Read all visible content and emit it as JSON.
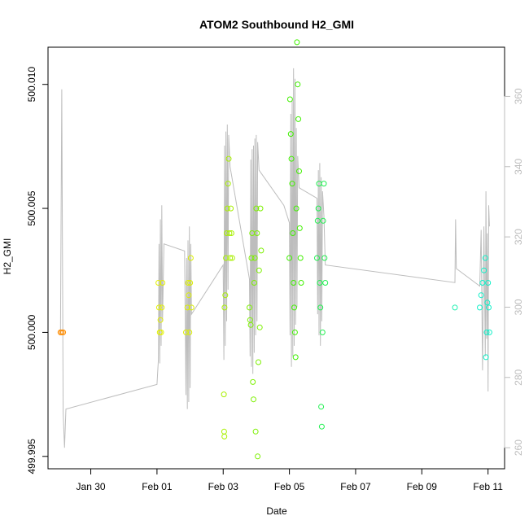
{
  "chart_data": {
    "type": "scatter",
    "title": "ATOM2 Southbound H2_GMI",
    "xlabel": "Date",
    "ylabel": "H2_GMI",
    "x_ticks": [
      "Jan 30",
      "Feb 01",
      "Feb 03",
      "Feb 05",
      "Feb 07",
      "Feb 09",
      "Feb 11"
    ],
    "x_tick_dates": [
      "2017-01-30",
      "2017-02-01",
      "2017-02-03",
      "2017-02-05",
      "2017-02-07",
      "2017-02-09",
      "2017-02-11"
    ],
    "y_ticks": [
      "499.995",
      "500.000",
      "500.005",
      "500.010"
    ],
    "y2_ticks": [
      "260",
      "280",
      "300",
      "320",
      "340",
      "360"
    ],
    "xlim": [
      "2017-01-28 17:00",
      "2017-02-11 12:00"
    ],
    "ylim": [
      499.9945,
      500.0115
    ],
    "y2lim": [
      254,
      374
    ],
    "grid": false,
    "colors": {
      "background_line": "#bdbdbd",
      "axis": "#000000",
      "right_axis": "#bdbdbd",
      "points_jan29": "#ff8c00",
      "points_feb01": "#e2f000",
      "points_feb02": "#dcf000",
      "points_feb03": "#a8f000",
      "points_feb04": "#7cf000",
      "points_feb05": "#40f000",
      "points_feb06": "#20f050",
      "points_feb10": "#1ff0b0",
      "points_feb11": "#10f0c8"
    },
    "series": [
      {
        "kind": "points",
        "color_key": "points_jan29",
        "points": [
          [
            "2017-01-29 02:00",
            500.0
          ],
          [
            "2017-01-29 03:00",
            500.0
          ],
          [
            "2017-01-29 04:00",
            500.0
          ]
        ]
      },
      {
        "kind": "points",
        "color_key": "points_feb01",
        "points": [
          [
            "2017-02-01 01:00",
            500.002
          ],
          [
            "2017-02-01 01:30",
            500.001
          ],
          [
            "2017-02-01 02:00",
            500.0
          ],
          [
            "2017-02-01 02:30",
            500.0005
          ],
          [
            "2017-02-01 03:00",
            500.0
          ],
          [
            "2017-02-01 03:30",
            500.001
          ],
          [
            "2017-02-01 04:00",
            500.002
          ]
        ]
      },
      {
        "kind": "points",
        "color_key": "points_feb02",
        "points": [
          [
            "2017-02-01 21:00",
            500.0
          ],
          [
            "2017-02-01 22:00",
            500.001
          ],
          [
            "2017-02-01 22:30",
            500.002
          ],
          [
            "2017-02-01 23:00",
            500.0015
          ],
          [
            "2017-02-01 23:30",
            500.0
          ],
          [
            "2017-02-02 00:00",
            500.002
          ],
          [
            "2017-02-02 00:30",
            500.003
          ],
          [
            "2017-02-02 01:00",
            500.001
          ]
        ]
      },
      {
        "kind": "points",
        "color_key": "points_feb03",
        "points": [
          [
            "2017-02-03 00:30",
            499.9975
          ],
          [
            "2017-02-03 00:40",
            499.996
          ],
          [
            "2017-02-03 00:50",
            499.9958
          ],
          [
            "2017-02-03 01:00",
            500.001
          ],
          [
            "2017-02-03 01:30",
            500.0015
          ],
          [
            "2017-02-03 02:00",
            500.003
          ],
          [
            "2017-02-03 02:30",
            500.004
          ],
          [
            "2017-02-03 03:00",
            500.005
          ],
          [
            "2017-02-03 03:30",
            500.006
          ],
          [
            "2017-02-03 04:00",
            500.007
          ],
          [
            "2017-02-03 04:30",
            500.004
          ],
          [
            "2017-02-03 05:00",
            500.003
          ],
          [
            "2017-02-03 05:30",
            500.005
          ],
          [
            "2017-02-03 06:00",
            500.004
          ],
          [
            "2017-02-03 06:30",
            500.003
          ]
        ]
      },
      {
        "kind": "points",
        "color_key": "points_feb04",
        "points": [
          [
            "2017-02-03 19:00",
            500.001
          ],
          [
            "2017-02-03 19:30",
            500.0005
          ],
          [
            "2017-02-03 20:00",
            500.0003
          ],
          [
            "2017-02-03 20:30",
            500.003
          ],
          [
            "2017-02-03 21:00",
            500.004
          ],
          [
            "2017-02-03 21:30",
            499.998
          ],
          [
            "2017-02-03 22:00",
            499.9973
          ],
          [
            "2017-02-03 22:30",
            500.002
          ],
          [
            "2017-02-03 23:00",
            500.003
          ],
          [
            "2017-02-03 23:30",
            499.996
          ],
          [
            "2017-02-04 00:00",
            500.005
          ],
          [
            "2017-02-04 00:30",
            500.004
          ],
          [
            "2017-02-04 01:00",
            499.995
          ],
          [
            "2017-02-04 01:30",
            499.9988
          ],
          [
            "2017-02-04 02:00",
            500.0025
          ],
          [
            "2017-02-04 02:30",
            500.0002
          ],
          [
            "2017-02-04 03:00",
            500.005
          ],
          [
            "2017-02-04 03:30",
            500.0033
          ]
        ]
      },
      {
        "kind": "points",
        "color_key": "points_feb05",
        "points": [
          [
            "2017-02-05 00:00",
            500.003
          ],
          [
            "2017-02-05 00:30",
            500.0094
          ],
          [
            "2017-02-05 01:00",
            500.008
          ],
          [
            "2017-02-05 01:30",
            500.007
          ],
          [
            "2017-02-05 02:00",
            500.006
          ],
          [
            "2017-02-05 02:30",
            500.004
          ],
          [
            "2017-02-05 03:00",
            500.002
          ],
          [
            "2017-02-05 03:30",
            500.001
          ],
          [
            "2017-02-05 04:00",
            500.0
          ],
          [
            "2017-02-05 04:30",
            499.999
          ],
          [
            "2017-02-05 05:00",
            500.005
          ],
          [
            "2017-02-05 05:30",
            500.0117
          ],
          [
            "2017-02-05 06:00",
            500.01
          ],
          [
            "2017-02-05 06:30",
            500.0086
          ],
          [
            "2017-02-05 07:00",
            500.0065
          ],
          [
            "2017-02-05 07:30",
            500.0042
          ],
          [
            "2017-02-05 08:00",
            500.003
          ],
          [
            "2017-02-05 08:30",
            500.002
          ]
        ]
      },
      {
        "kind": "points",
        "color_key": "points_feb06",
        "points": [
          [
            "2017-02-05 20:00",
            500.003
          ],
          [
            "2017-02-05 20:30",
            500.0045
          ],
          [
            "2017-02-05 21:00",
            500.005
          ],
          [
            "2017-02-05 21:30",
            500.006
          ],
          [
            "2017-02-05 22:00",
            500.002
          ],
          [
            "2017-02-05 22:30",
            500.001
          ],
          [
            "2017-02-05 23:00",
            499.997
          ],
          [
            "2017-02-05 23:30",
            499.9962
          ],
          [
            "2017-02-06 00:00",
            500.0
          ],
          [
            "2017-02-06 00:30",
            500.0045
          ],
          [
            "2017-02-06 01:00",
            500.006
          ],
          [
            "2017-02-06 01:30",
            500.003
          ],
          [
            "2017-02-06 02:00",
            500.002
          ]
        ]
      },
      {
        "kind": "points",
        "color_key": "points_feb10",
        "points": [
          [
            "2017-02-10 00:00",
            500.001
          ]
        ]
      },
      {
        "kind": "points",
        "color_key": "points_feb11",
        "points": [
          [
            "2017-02-10 18:00",
            500.001
          ],
          [
            "2017-02-10 19:00",
            500.0015
          ],
          [
            "2017-02-10 20:00",
            500.002
          ],
          [
            "2017-02-10 21:00",
            500.0025
          ],
          [
            "2017-02-10 22:00",
            500.003
          ],
          [
            "2017-02-10 22:30",
            499.999
          ],
          [
            "2017-02-10 23:00",
            500.0
          ],
          [
            "2017-02-10 23:30",
            500.0012
          ],
          [
            "2017-02-11 00:00",
            500.002
          ],
          [
            "2017-02-11 00:30",
            500.001
          ],
          [
            "2017-02-11 01:00",
            500.0
          ]
        ]
      }
    ],
    "secondary_series": {
      "kind": "line",
      "color_key": "background_line",
      "axis": "right",
      "segments": [
        [
          [
            "2017-01-29 02:00",
            292
          ],
          [
            "2017-01-29 03:00",
            362
          ],
          [
            "2017-01-29 04:00",
            270
          ],
          [
            "2017-01-29 05:00",
            260
          ],
          [
            "2017-01-29 06:00",
            271
          ],
          [
            "2017-02-01 00:00",
            278
          ],
          [
            "2017-02-01 01:00",
            285
          ],
          [
            "2017-02-01 01:30",
            318
          ],
          [
            "2017-02-01 02:00",
            284
          ],
          [
            "2017-02-01 02:30",
            325
          ],
          [
            "2017-02-01 03:00",
            289
          ],
          [
            "2017-02-01 03:30",
            329
          ],
          [
            "2017-02-01 04:00",
            296
          ],
          [
            "2017-02-01 05:00",
            318
          ],
          [
            "2017-02-01 20:00",
            316
          ],
          [
            "2017-02-01 21:00",
            275
          ],
          [
            "2017-02-01 21:30",
            314
          ],
          [
            "2017-02-01 22:00",
            271
          ],
          [
            "2017-02-01 22:30",
            319
          ],
          [
            "2017-02-01 23:00",
            273
          ],
          [
            "2017-02-01 23:30",
            323
          ],
          [
            "2017-02-02 00:00",
            277
          ],
          [
            "2017-02-02 00:30",
            318
          ],
          [
            "2017-02-02 01:00",
            298
          ],
          [
            "2017-02-03 00:00",
            312
          ],
          [
            "2017-02-03 00:30",
            285
          ],
          [
            "2017-02-03 01:00",
            346
          ],
          [
            "2017-02-03 01:30",
            289
          ],
          [
            "2017-02-03 02:00",
            350
          ],
          [
            "2017-02-03 02:30",
            296
          ],
          [
            "2017-02-03 03:00",
            352
          ],
          [
            "2017-02-03 03:30",
            305
          ],
          [
            "2017-02-03 04:00",
            349
          ],
          [
            "2017-02-03 05:00",
            340
          ],
          [
            "2017-02-03 19:00",
            308
          ],
          [
            "2017-02-03 19:30",
            286
          ],
          [
            "2017-02-03 20:00",
            342
          ],
          [
            "2017-02-03 20:30",
            283
          ],
          [
            "2017-02-03 21:00",
            345
          ],
          [
            "2017-02-03 21:30",
            281
          ],
          [
            "2017-02-03 22:00",
            346
          ],
          [
            "2017-02-03 22:30",
            287
          ],
          [
            "2017-02-03 23:00",
            348
          ],
          [
            "2017-02-03 23:30",
            292
          ],
          [
            "2017-02-04 00:00",
            349
          ],
          [
            "2017-02-04 00:30",
            296
          ],
          [
            "2017-02-04 01:00",
            347
          ],
          [
            "2017-02-04 02:00",
            339
          ],
          [
            "2017-02-04 20:00",
            329
          ],
          [
            "2017-02-05 00:00",
            324
          ],
          [
            "2017-02-05 00:30",
            292
          ],
          [
            "2017-02-05 01:00",
            355
          ],
          [
            "2017-02-05 01:30",
            283
          ],
          [
            "2017-02-05 02:00",
            359
          ],
          [
            "2017-02-05 02:30",
            286
          ],
          [
            "2017-02-05 03:00",
            368
          ],
          [
            "2017-02-05 03:30",
            289
          ],
          [
            "2017-02-05 04:00",
            365
          ],
          [
            "2017-02-05 04:30",
            295
          ],
          [
            "2017-02-05 05:00",
            351
          ],
          [
            "2017-02-05 05:30",
            300
          ],
          [
            "2017-02-05 06:00",
            343
          ],
          [
            "2017-02-05 07:00",
            334
          ],
          [
            "2017-02-05 20:00",
            331
          ],
          [
            "2017-02-05 20:30",
            298
          ],
          [
            "2017-02-05 21:00",
            339
          ],
          [
            "2017-02-05 21:30",
            292
          ],
          [
            "2017-02-05 22:00",
            341
          ],
          [
            "2017-02-05 22:30",
            289
          ],
          [
            "2017-02-05 23:00",
            337
          ],
          [
            "2017-02-05 23:30",
            296
          ],
          [
            "2017-02-06 00:00",
            333
          ],
          [
            "2017-02-06 01:00",
            326
          ],
          [
            "2017-02-06 02:00",
            312
          ],
          [
            "2017-02-10 00:00",
            307
          ],
          [
            "2017-02-10 00:30",
            325
          ],
          [
            "2017-02-10 01:00",
            311
          ],
          [
            "2017-02-10 18:00",
            306
          ],
          [
            "2017-02-10 19:00",
            322
          ],
          [
            "2017-02-10 20:00",
            282
          ],
          [
            "2017-02-10 21:00",
            323
          ],
          [
            "2017-02-10 22:00",
            286
          ],
          [
            "2017-02-10 22:30",
            333
          ],
          [
            "2017-02-10 23:00",
            291
          ],
          [
            "2017-02-10 23:30",
            321
          ],
          [
            "2017-02-11 00:00",
            276
          ],
          [
            "2017-02-11 00:30",
            329
          ],
          [
            "2017-02-11 01:00",
            323
          ]
        ]
      ]
    }
  }
}
